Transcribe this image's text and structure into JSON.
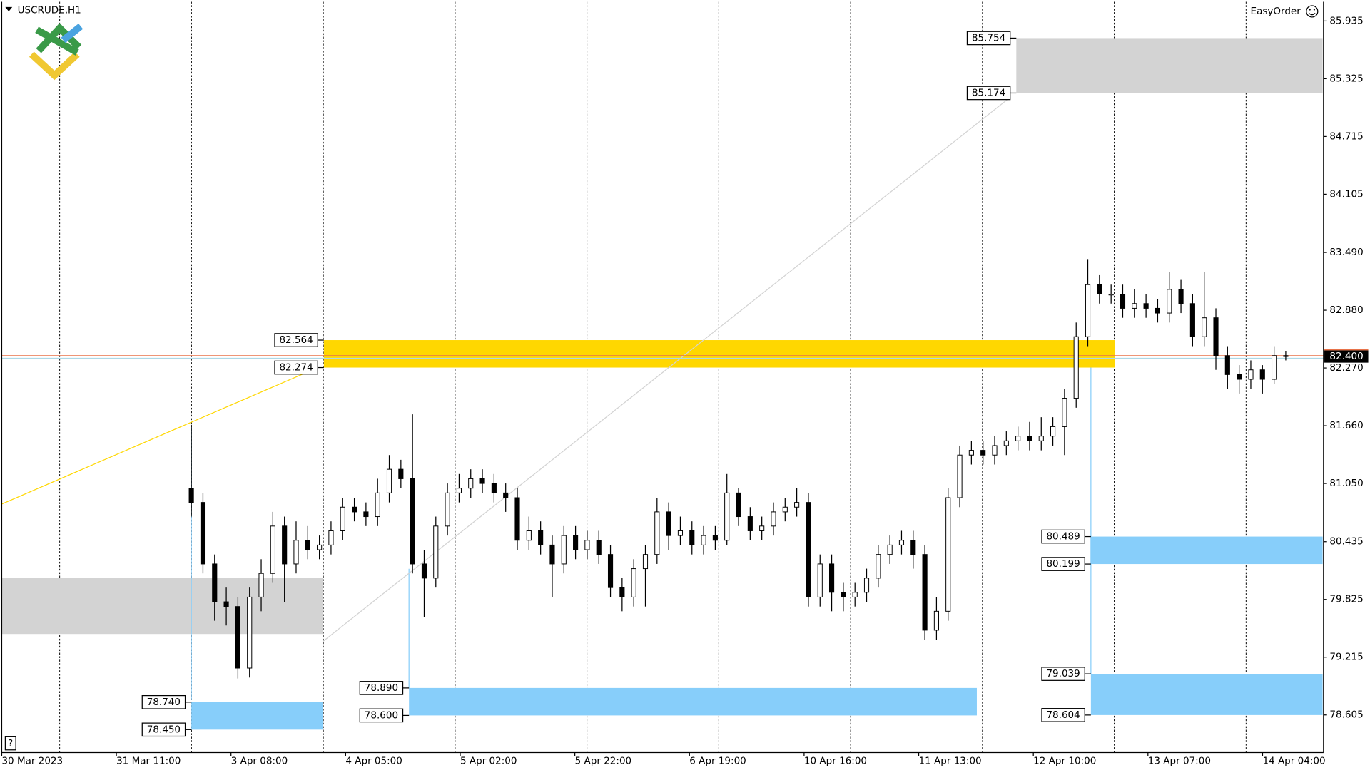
{
  "chart_data": {
    "type": "candlestick",
    "title": "USCRUDE,H1",
    "tool_label": "EasyOrder",
    "help_button": "?",
    "ylim": [
      78.208,
      86.138
    ],
    "yticks": [
      85.935,
      85.325,
      84.715,
      84.105,
      {
        "value": 83.49,
        "label": "83.490"
      },
      {
        "value": 82.88,
        "label": "82.880"
      },
      {
        "value": 82.27,
        "label": "82.270"
      },
      {
        "value": 81.66,
        "label": "81.660"
      },
      {
        "value": 81.05,
        "label": "81.050"
      },
      80.435,
      79.825,
      79.215,
      78.605
    ],
    "x_labels": [
      "30 Mar 2023",
      "31 Mar 11:00",
      "3 Apr 08:00",
      "4 Apr 05:00",
      "5 Apr 02:00",
      "5 Apr 22:00",
      "6 Apr 19:00",
      "10 Apr 16:00",
      "11 Apr 13:00",
      "12 Apr 10:00",
      "13 Apr 07:00",
      "14 Apr 04:00"
    ],
    "current_price": {
      "value": 82.4,
      "label": "82.400"
    },
    "up_color": "#ffffff",
    "down_color": "#000000",
    "open": [
      81.0,
      80.85,
      80.2,
      79.8,
      79.75,
      79.1,
      79.85,
      80.1,
      80.6,
      80.2,
      80.45,
      80.35,
      80.4,
      80.55,
      80.8,
      80.75,
      80.7,
      80.95,
      81.2,
      81.1,
      80.2,
      80.05,
      80.6,
      80.95,
      81.0,
      81.1,
      81.05,
      80.95,
      80.9,
      80.45,
      80.55,
      80.4,
      80.2,
      80.5,
      80.35,
      80.45,
      80.3,
      79.95,
      79.85,
      80.15,
      80.3,
      80.75,
      80.5,
      80.55,
      80.4,
      80.5,
      80.45,
      80.95,
      80.7,
      80.55,
      80.6,
      80.75,
      80.8,
      80.85,
      79.85,
      80.2,
      79.9,
      79.85,
      79.9,
      80.05,
      80.3,
      80.4,
      80.45,
      80.3,
      79.5,
      79.7,
      80.9,
      81.35,
      81.4,
      81.35,
      81.45,
      81.5,
      81.55,
      81.5,
      81.55,
      81.65,
      81.95,
      82.6,
      83.15,
      83.05,
      83.05,
      82.9,
      82.95,
      82.9,
      82.85,
      83.1,
      82.95,
      82.6,
      82.8,
      82.4,
      82.2,
      82.15,
      82.25,
      82.15,
      82.4
    ],
    "high": [
      81.67,
      80.95,
      80.3,
      79.95,
      79.85,
      79.95,
      80.25,
      80.75,
      80.7,
      80.65,
      80.6,
      80.5,
      80.65,
      80.9,
      80.9,
      80.85,
      81.1,
      81.35,
      81.3,
      81.78,
      80.35,
      80.7,
      81.05,
      81.15,
      81.2,
      81.2,
      81.15,
      81.05,
      81.0,
      80.7,
      80.65,
      80.5,
      80.6,
      80.6,
      80.55,
      80.55,
      80.4,
      80.05,
      80.25,
      80.4,
      80.9,
      80.85,
      80.7,
      80.65,
      80.6,
      80.6,
      81.15,
      81.0,
      80.8,
      80.7,
      80.85,
      80.9,
      81.0,
      80.95,
      80.3,
      80.3,
      80.0,
      80.0,
      80.15,
      80.4,
      80.5,
      80.55,
      80.55,
      80.4,
      79.85,
      81.0,
      81.45,
      81.5,
      81.5,
      81.55,
      81.6,
      81.65,
      81.7,
      81.75,
      81.75,
      82.05,
      82.75,
      83.42,
      83.25,
      83.15,
      83.15,
      83.1,
      83.05,
      83.0,
      83.28,
      83.2,
      83.05,
      83.28,
      82.9,
      82.5,
      82.3,
      82.35,
      82.3,
      82.5,
      82.45
    ],
    "low": [
      80.7,
      80.1,
      79.6,
      79.55,
      78.99,
      79.0,
      79.7,
      80.0,
      79.8,
      80.1,
      80.25,
      80.25,
      80.3,
      80.45,
      80.65,
      80.6,
      80.6,
      80.85,
      81.0,
      80.1,
      79.64,
      79.95,
      80.5,
      80.85,
      80.9,
      80.95,
      80.85,
      80.75,
      80.35,
      80.35,
      80.3,
      79.85,
      80.1,
      80.25,
      80.25,
      80.2,
      79.85,
      79.7,
      79.75,
      79.75,
      80.2,
      80.35,
      80.4,
      80.3,
      80.3,
      80.35,
      80.4,
      80.6,
      80.45,
      80.45,
      80.5,
      80.65,
      80.7,
      79.75,
      79.75,
      79.7,
      79.7,
      79.75,
      79.8,
      79.95,
      80.2,
      80.3,
      80.15,
      79.4,
      79.4,
      79.6,
      80.8,
      81.25,
      81.25,
      81.25,
      81.35,
      81.4,
      81.4,
      81.4,
      81.45,
      81.35,
      81.85,
      82.5,
      82.95,
      82.95,
      82.8,
      82.8,
      82.8,
      82.75,
      82.75,
      82.85,
      82.5,
      82.5,
      82.25,
      82.05,
      82.0,
      82.05,
      82.0,
      82.1,
      82.35
    ],
    "close": [
      80.85,
      80.2,
      79.8,
      79.75,
      79.1,
      79.85,
      80.1,
      80.6,
      80.2,
      80.45,
      80.35,
      80.4,
      80.55,
      80.8,
      80.75,
      80.7,
      80.95,
      81.2,
      81.1,
      80.2,
      80.05,
      80.6,
      80.95,
      81.0,
      81.1,
      81.05,
      80.95,
      80.9,
      80.45,
      80.55,
      80.4,
      80.2,
      80.5,
      80.35,
      80.45,
      80.3,
      79.95,
      79.85,
      80.15,
      80.3,
      80.75,
      80.5,
      80.55,
      80.4,
      80.5,
      80.45,
      80.95,
      80.7,
      80.55,
      80.6,
      80.75,
      80.8,
      80.85,
      79.85,
      80.2,
      79.9,
      79.85,
      79.9,
      80.05,
      80.3,
      80.4,
      80.45,
      80.3,
      79.5,
      79.7,
      80.9,
      81.35,
      81.4,
      81.35,
      81.45,
      81.5,
      81.55,
      81.5,
      81.55,
      81.65,
      81.95,
      82.6,
      83.15,
      83.05,
      83.05,
      82.9,
      82.95,
      82.9,
      82.85,
      83.1,
      82.95,
      82.6,
      82.8,
      82.4,
      82.2,
      82.15,
      82.25,
      82.15,
      82.4,
      82.4
    ],
    "zones": [
      {
        "top": 85.754,
        "bottom": 85.174,
        "color": "#d3d3d3"
      },
      {
        "top": 82.564,
        "bottom": 82.274,
        "color": "#ffd700"
      },
      {
        "top": {
          "value": 78.74,
          "label": "78.740"
        },
        "bottom": {
          "value": 78.45,
          "label": "78.450"
        },
        "color": "#87cefa"
      },
      {
        "top": {
          "value": 78.89,
          "label": "78.890"
        },
        "bottom": {
          "value": 78.6,
          "label": "78.600"
        },
        "color": "#87cefa"
      },
      {
        "top": 80.489,
        "bottom": 80.199,
        "color": "#87cefa"
      },
      {
        "top": 79.039,
        "bottom": 78.604,
        "color": "#87cefa"
      }
    ],
    "shaded_area": {
      "top": 80.05,
      "bottom": 79.46,
      "color": "#d3d3d3"
    }
  }
}
